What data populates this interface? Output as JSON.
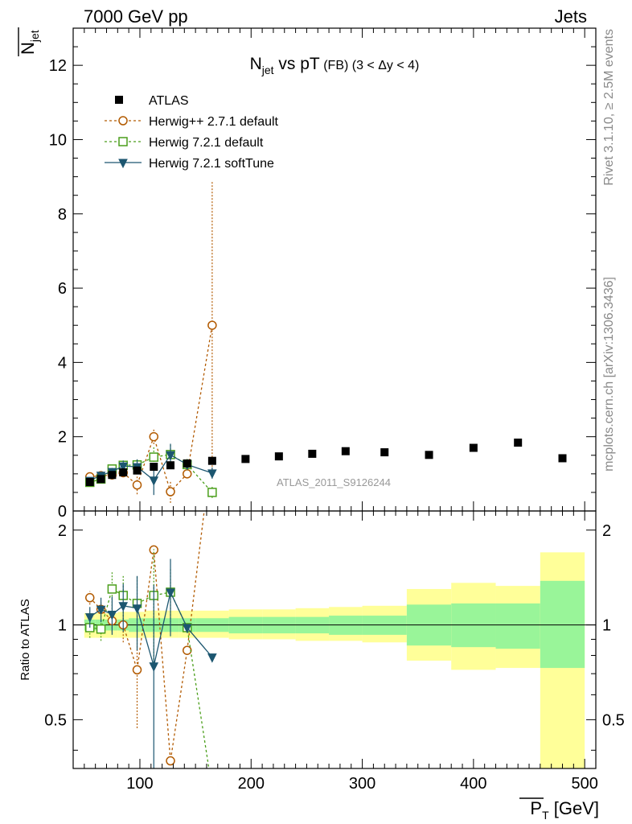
{
  "header": {
    "left": "7000 GeV pp",
    "right": "Jets"
  },
  "side_labels": {
    "rivet": "Rivet 3.1.10, ≥ 2.5M events",
    "mcplots": "mcplots.cern.ch [arXiv:1306.3436]"
  },
  "chart_data": {
    "type": "scatter",
    "title": "N_jet vs pT (FB) (3 < Δy < 4)",
    "title_parts": {
      "main": "N",
      "sub": "jet",
      "rest": " vs pT",
      "small": " (FB) (3 < Δy < 4)"
    },
    "watermark": "ATLAS_2011_S9126244",
    "xlabel": {
      "main": "P",
      "sub": "T",
      "unit": " [GeV]"
    },
    "ylabel": {
      "main": "N",
      "sub": "jet"
    },
    "ratio_ylabel": "Ratio to ATLAS",
    "xlim": [
      40,
      510
    ],
    "ylim": [
      0,
      13
    ],
    "ratio_ylim": [
      0.35,
      2.3
    ],
    "x_ticks": [
      100,
      200,
      300,
      400,
      500
    ],
    "y_ticks": [
      0,
      2,
      4,
      6,
      8,
      10,
      12
    ],
    "ratio_y_ticks": [
      0.5,
      1,
      2
    ],
    "ratio_y_tick_labels": [
      "0.5",
      "1",
      "2"
    ],
    "legend_position": "top-left",
    "data": {
      "name": "ATLAS",
      "x": [
        55,
        65,
        75,
        85,
        97.5,
        112.5,
        127.5,
        142.5,
        165,
        195,
        225,
        255,
        285,
        320,
        360,
        400,
        440,
        480
      ],
      "y": [
        0.78,
        0.86,
        0.97,
        1.04,
        1.09,
        1.19,
        1.23,
        1.28,
        1.35,
        1.4,
        1.47,
        1.54,
        1.61,
        1.58,
        1.51,
        1.7,
        1.84,
        1.42
      ],
      "bins": [
        [
          50,
          60
        ],
        [
          60,
          70
        ],
        [
          70,
          80
        ],
        [
          80,
          90
        ],
        [
          90,
          105
        ],
        [
          105,
          120
        ],
        [
          120,
          135
        ],
        [
          135,
          150
        ],
        [
          150,
          180
        ],
        [
          180,
          210
        ],
        [
          210,
          240
        ],
        [
          240,
          270
        ],
        [
          270,
          300
        ],
        [
          300,
          340
        ],
        [
          340,
          380
        ],
        [
          380,
          420
        ],
        [
          420,
          460
        ],
        [
          460,
          500
        ]
      ],
      "band_inner": [
        [
          0.96,
          1.04
        ],
        [
          0.96,
          1.04
        ],
        [
          0.96,
          1.04
        ],
        [
          0.96,
          1.04
        ],
        [
          0.95,
          1.05
        ],
        [
          0.95,
          1.05
        ],
        [
          0.95,
          1.05
        ],
        [
          0.95,
          1.05
        ],
        [
          0.95,
          1.05
        ],
        [
          0.94,
          1.06
        ],
        [
          0.94,
          1.06
        ],
        [
          0.94,
          1.06
        ],
        [
          0.93,
          1.07
        ],
        [
          0.93,
          1.07
        ],
        [
          0.86,
          1.16
        ],
        [
          0.85,
          1.17
        ],
        [
          0.84,
          1.17
        ],
        [
          0.73,
          1.38
        ]
      ],
      "band_outer": [
        [
          0.91,
          1.09
        ],
        [
          0.91,
          1.09
        ],
        [
          0.91,
          1.09
        ],
        [
          0.91,
          1.1
        ],
        [
          0.91,
          1.1
        ],
        [
          0.91,
          1.11
        ],
        [
          0.91,
          1.11
        ],
        [
          0.91,
          1.11
        ],
        [
          0.91,
          1.11
        ],
        [
          0.9,
          1.12
        ],
        [
          0.9,
          1.12
        ],
        [
          0.89,
          1.13
        ],
        [
          0.89,
          1.14
        ],
        [
          0.88,
          1.15
        ],
        [
          0.77,
          1.3
        ],
        [
          0.72,
          1.36
        ],
        [
          0.73,
          1.33
        ],
        [
          0.35,
          1.7
        ]
      ]
    },
    "series": [
      {
        "name": "Herwig++ 2.7.1 default",
        "color": "#b25a00",
        "marker": "open-circle",
        "x": [
          55,
          65,
          75,
          85,
          97.5,
          112.5,
          127.5,
          142.5,
          165
        ],
        "y": [
          0.92,
          0.95,
          0.97,
          1.03,
          0.7,
          2.0,
          0.52,
          1.0,
          5.0
        ],
        "ratio": [
          1.22,
          1.12,
          1.03,
          1.0,
          0.72,
          1.73,
          0.37,
          0.83,
          3.7
        ],
        "yerr": [
          0.05,
          0.05,
          0.08,
          0.12,
          0.25,
          0.2,
          0.3,
          0.1,
          3.9
        ],
        "ratio_err": [
          0.06,
          0.06,
          0.08,
          0.12,
          0.25,
          0.0,
          0.0,
          0.0,
          0.0
        ]
      },
      {
        "name": "Herwig 7.2.1 default",
        "color": "#4a9e1a",
        "marker": "open-square",
        "x": [
          55,
          65,
          75,
          85,
          97.5,
          112.5,
          127.5,
          142.5,
          165
        ],
        "y": [
          0.77,
          0.86,
          1.13,
          1.23,
          1.24,
          1.45,
          1.52,
          1.25,
          0.5
        ],
        "ratio": [
          0.98,
          0.97,
          1.3,
          1.24,
          1.17,
          1.24,
          1.27,
          0.98,
          0.3
        ],
        "yerr": [
          0.05,
          0.06,
          0.1,
          0.12,
          0.15,
          0.3,
          0.3,
          0.15,
          0.15
        ],
        "ratio_err": [
          0.07,
          0.08,
          0.18,
          0.2,
          0.25,
          0.5,
          0.25,
          0.0,
          0.0
        ]
      },
      {
        "name": "Herwig 7.2.1 softTune",
        "color": "#1c5670",
        "marker": "filled-triangle-down",
        "x": [
          55,
          65,
          75,
          85,
          97.5,
          112.5,
          127.5,
          142.5,
          165
        ],
        "y": [
          0.82,
          0.96,
          1.06,
          1.21,
          1.19,
          0.83,
          1.51,
          1.25,
          1.02
        ],
        "ratio": [
          1.06,
          1.12,
          1.08,
          1.15,
          1.13,
          0.74,
          1.27,
          0.98,
          0.79
        ],
        "yerr": [
          0.05,
          0.06,
          0.1,
          0.15,
          0.2,
          0.4,
          0.3,
          0.1,
          0.15
        ],
        "ratio_err": [
          0.08,
          0.1,
          0.15,
          0.2,
          0.3,
          0.6,
          0.35,
          0.0,
          0.0
        ]
      }
    ],
    "colors": {
      "band_inner": "#99f599",
      "band_outer": "#ffff99",
      "data_marker": "#000000",
      "watermark": "#999999"
    }
  }
}
